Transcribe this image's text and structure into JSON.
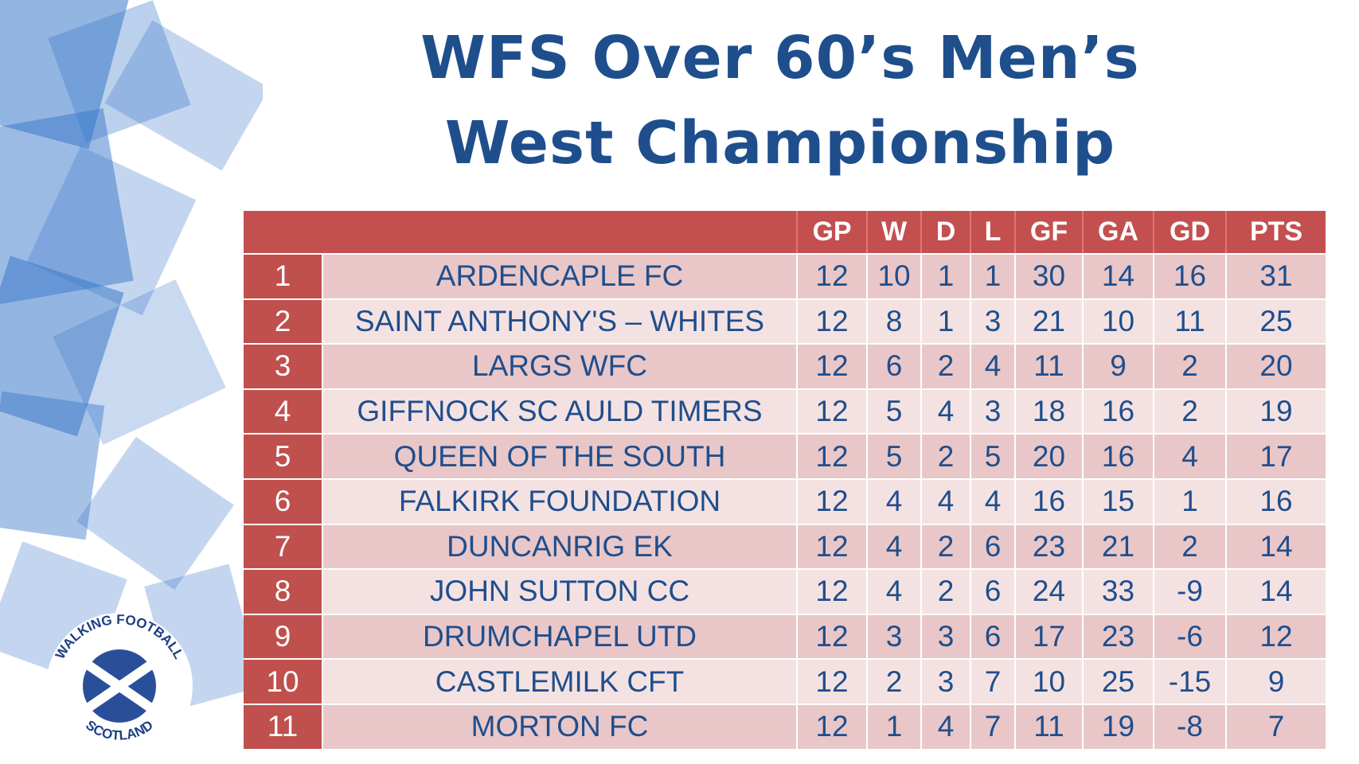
{
  "header": {
    "title_lines": [
      "WFS Over 60’s Men’s",
      "West Championship"
    ]
  },
  "logo": {
    "top": "WALKING FOOTBALL",
    "bottom": "SCOTLAND"
  },
  "table": {
    "columns": [
      "GP",
      "W",
      "D",
      "L",
      "GF",
      "GA",
      "GD",
      "PTS"
    ],
    "rows": [
      [
        1,
        "ARDENCAPLE FC",
        12,
        10,
        1,
        1,
        30,
        14,
        16,
        31
      ],
      [
        2,
        "SAINT ANTHONY'S – WHITES",
        12,
        8,
        1,
        3,
        21,
        10,
        11,
        25
      ],
      [
        3,
        "LARGS WFC",
        12,
        6,
        2,
        4,
        11,
        9,
        2,
        20
      ],
      [
        4,
        "GIFFNOCK SC AULD TIMERS",
        12,
        5,
        4,
        3,
        18,
        16,
        2,
        19
      ],
      [
        5,
        "QUEEN OF THE SOUTH",
        12,
        5,
        2,
        5,
        20,
        16,
        4,
        17
      ],
      [
        6,
        "FALKIRK FOUNDATION",
        12,
        4,
        4,
        4,
        16,
        15,
        1,
        16
      ],
      [
        7,
        "DUNCANRIG EK",
        12,
        4,
        2,
        6,
        23,
        21,
        2,
        14
      ],
      [
        8,
        "JOHN SUTTON CC",
        12,
        4,
        2,
        6,
        24,
        33,
        -9,
        14
      ],
      [
        9,
        "DRUMCHAPEL UTD",
        12,
        3,
        3,
        6,
        17,
        23,
        -6,
        12
      ],
      [
        10,
        "CASTLEMILK CFT",
        12,
        2,
        3,
        7,
        10,
        25,
        -15,
        9
      ],
      [
        11,
        "MORTON FC",
        12,
        1,
        4,
        7,
        11,
        19,
        -8,
        7
      ]
    ]
  }
}
